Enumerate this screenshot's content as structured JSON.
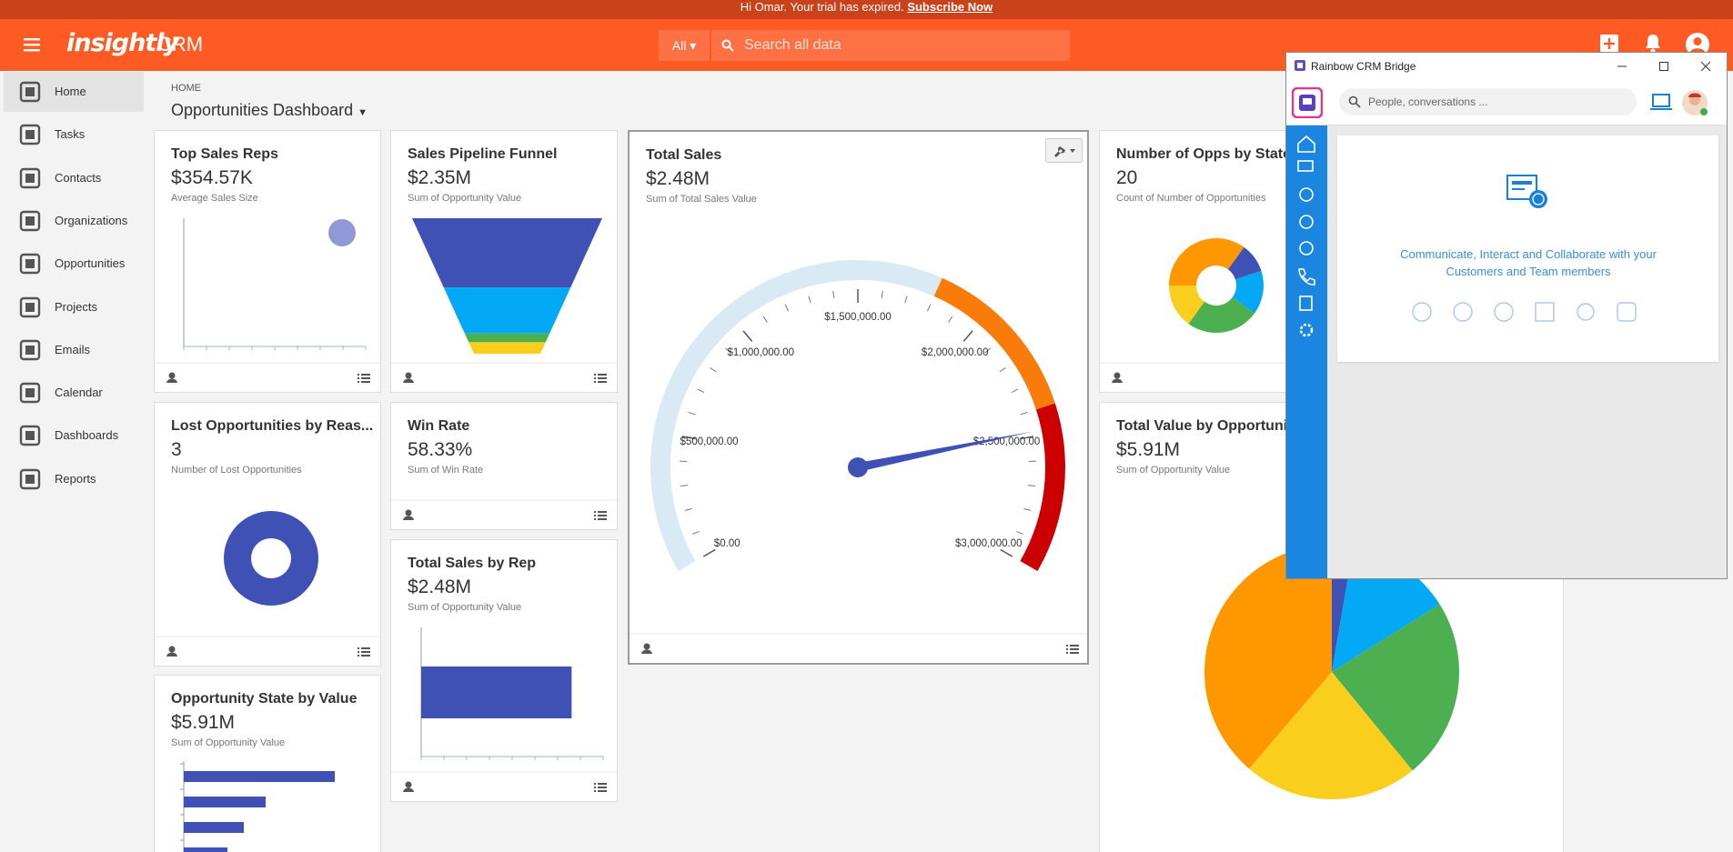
{
  "banner": {
    "message": "Hi Omar. Your trial has expired.",
    "link": "Subscribe Now"
  },
  "header": {
    "logo": "insightly",
    "app": "CRM",
    "search_scope": "All",
    "search_placeholder": "Search all data"
  },
  "sidebar": {
    "items": [
      "Home",
      "Tasks",
      "Contacts",
      "Organizations",
      "Opportunities",
      "Projects",
      "Emails",
      "Calendar",
      "Dashboards",
      "Reports"
    ],
    "active": 0
  },
  "breadcrumb": "HOME",
  "page_title": "Opportunities Dashboard",
  "widgets": [
    {
      "title": "Top Sales Reps",
      "value": "$354.57K",
      "subtitle": "Average Sales Size",
      "chart": {
        "type": "scatter",
        "x": [
          8.7
        ],
        "values": [
          354570
        ],
        "xlim": [
          0,
          10
        ],
        "ylim": [
          0,
          400000
        ],
        "color": "#8e99d6"
      }
    },
    {
      "title": "Sales Pipeline Funnel",
      "value": "$2.35M",
      "subtitle": "Sum of Opportunity Value",
      "chart": {
        "type": "funnel",
        "values": [
          1.2,
          0.8,
          0.15,
          0.2
        ],
        "colors": [
          "#3f51b5",
          "#03a9f4",
          "#4caf50",
          "#f9ce1d"
        ]
      }
    },
    {
      "title": "Total Sales",
      "value": "$2.48M",
      "subtitle": "Sum of Total Sales Value",
      "chart": {
        "type": "gauge",
        "value": 2480000,
        "range": [
          0,
          3000000
        ],
        "minor_step": 100000,
        "needle_color": "#3f51b5",
        "ticks": [
          {
            "value": 0,
            "label": "$0.00"
          },
          {
            "value": 500000,
            "label": "$500,000.00"
          },
          {
            "value": 1000000,
            "label": "$1,000,000.00"
          },
          {
            "value": 1500000,
            "label": "$1,500,000.00"
          },
          {
            "value": 2000000,
            "label": "$2,000,000.00"
          },
          {
            "value": 2500000,
            "label": "$2,500,000.00"
          },
          {
            "value": 3000000,
            "label": "$3,000,000.00"
          }
        ],
        "bands": [
          {
            "from": 0,
            "to": 1800000,
            "color": "#d9eaf4"
          },
          {
            "from": 1800000,
            "to": 2400000,
            "color": "#f97c0a"
          },
          {
            "from": 2400000,
            "to": 3000000,
            "color": "#cc0000"
          }
        ]
      }
    },
    {
      "title": "Number of Opps by State",
      "value": "20",
      "subtitle": "Count of Number of Opportunities",
      "chart": {
        "type": "donut",
        "values": [
          7,
          2,
          3,
          5,
          3
        ],
        "colors": [
          "#ff9800",
          "#3f51b5",
          "#03a9f4",
          "#4caf50",
          "#f9ce1d"
        ]
      }
    },
    {
      "title": "Lost Opportunities by Reas...",
      "value": "3",
      "subtitle": "Number of Lost Opportunities",
      "chart": {
        "type": "donut",
        "values": [
          3
        ],
        "colors": [
          "#3f51b5"
        ]
      }
    },
    {
      "title": "Win Rate",
      "value": "58.33%",
      "subtitle": "Sum of Win Rate"
    },
    {
      "title": "Total Sales by Rep",
      "value": "$2.48M",
      "subtitle": "Sum of Opportunity Value",
      "chart": {
        "type": "hbar",
        "values": [
          2480000
        ],
        "xlim": [
          0,
          3000000
        ],
        "color": "#3f51b5"
      }
    },
    {
      "title": "Opportunity State by Value",
      "value": "$5.91M",
      "subtitle": "Sum of Opportunity Value",
      "chart": {
        "type": "hbar",
        "values": [
          83,
          45,
          33,
          24
        ],
        "xlim": [
          0,
          100
        ],
        "color": "#3f51b5"
      }
    },
    {
      "title": "Total Value by Opportunity",
      "value": "$5.91M",
      "subtitle": "Sum of Opportunity Value",
      "chart": {
        "type": "pie",
        "values": [
          0.16,
          0.79,
          1.36,
          1.31,
          2.29
        ],
        "colors": [
          "#3f51b5",
          "#03a9f4",
          "#4caf50",
          "#f9ce1d",
          "#ff9800"
        ]
      }
    }
  ],
  "rainbow": {
    "title": "Rainbow CRM Bridge",
    "search_placeholder": "People, conversations ...",
    "message": "Communicate, Interact and Collaborate with your Customers and Team members"
  }
}
